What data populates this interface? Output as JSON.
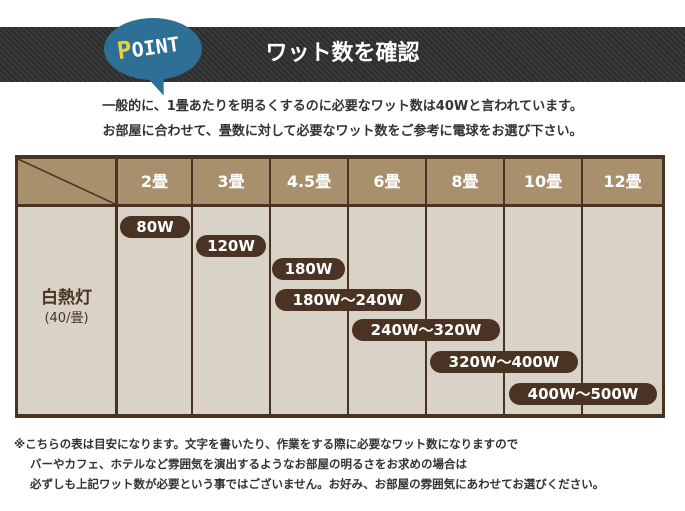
{
  "header": {
    "badge": "POINT",
    "title": "ワット数を確認"
  },
  "intro": [
    "一般的に、1畳あたりを明るくするのに必要なワット数は40Wと言われています。",
    "お部屋に合わせて、畳数に対して必要なワット数をご参考に電球をお選び下さい。"
  ],
  "table": {
    "columns": [
      "2畳",
      "3畳",
      "4.5畳",
      "6畳",
      "8畳",
      "10畳",
      "12畳"
    ],
    "row_label": "白熱灯",
    "row_sublabel": "(40/畳)",
    "values": [
      "80W",
      "120W",
      "180W",
      "180W～240W",
      "240W～320W",
      "320W～400W",
      "400W～500W"
    ]
  },
  "notes": [
    "※こちらの表は目安になります。文字を書いたり、作業をする際に必要なワット数になりますので",
    "バーやカフェ、ホテルなど雰囲気を演出するようなお部屋の明るさをお求めの場合は",
    "必ずしも上記ワット数が必要という事ではございません。お好み、お部屋の雰囲気にあわせてお選びください。"
  ],
  "colors": {
    "brown": "#4a3322",
    "tan": "#a8906c",
    "body": "#d9d2c6",
    "badge": "#2e6f95"
  }
}
